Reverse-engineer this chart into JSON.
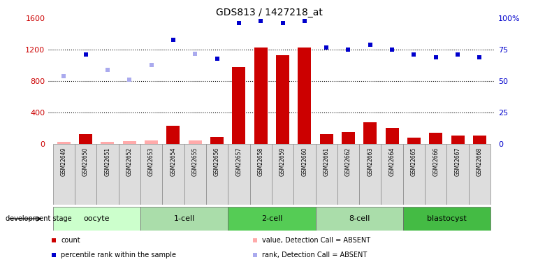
{
  "title": "GDS813 / 1427218_at",
  "samples": [
    "GSM22649",
    "GSM22650",
    "GSM22651",
    "GSM22652",
    "GSM22653",
    "GSM22654",
    "GSM22655",
    "GSM22656",
    "GSM22657",
    "GSM22658",
    "GSM22659",
    "GSM22660",
    "GSM22661",
    "GSM22662",
    "GSM22663",
    "GSM22664",
    "GSM22665",
    "GSM22666",
    "GSM22667",
    "GSM22668"
  ],
  "count_values": [
    25,
    130,
    25,
    35,
    45,
    230,
    45,
    95,
    980,
    1230,
    1130,
    1230,
    125,
    155,
    275,
    205,
    85,
    145,
    105,
    105
  ],
  "count_absent": [
    true,
    false,
    true,
    true,
    true,
    false,
    true,
    false,
    false,
    false,
    false,
    false,
    false,
    false,
    false,
    false,
    false,
    false,
    false,
    false
  ],
  "rank_pct": [
    54,
    71,
    59,
    51,
    63,
    83,
    72,
    68,
    96,
    98,
    96,
    98,
    77,
    75,
    79,
    75,
    71,
    69,
    71,
    69
  ],
  "rank_absent": [
    true,
    false,
    true,
    true,
    true,
    false,
    true,
    false,
    false,
    false,
    false,
    false,
    false,
    false,
    false,
    false,
    false,
    false,
    false,
    false
  ],
  "ylim_left": [
    0,
    1600
  ],
  "ylim_right": [
    0,
    100
  ],
  "yticks_left": [
    0,
    400,
    800,
    1200,
    1600
  ],
  "ytick_labels_left": [
    "0",
    "400",
    "800",
    "1200",
    "1600"
  ],
  "yticks_right": [
    0,
    25,
    50,
    75,
    100
  ],
  "ytick_labels_right": [
    "0",
    "25",
    "50",
    "75",
    "100%"
  ],
  "stage_groups": [
    {
      "label": "oocyte",
      "start": 0,
      "end": 3,
      "color": "#ccffcc"
    },
    {
      "label": "1-cell",
      "start": 4,
      "end": 7,
      "color": "#aaddaa"
    },
    {
      "label": "2-cell",
      "start": 8,
      "end": 11,
      "color": "#55cc55"
    },
    {
      "label": "8-cell",
      "start": 12,
      "end": 15,
      "color": "#aaddaa"
    },
    {
      "label": "blastocyst",
      "start": 16,
      "end": 19,
      "color": "#44bb44"
    }
  ],
  "bar_color_present": "#cc0000",
  "bar_color_absent": "#ffaaaa",
  "rank_color_present": "#0000cc",
  "rank_color_absent": "#aaaaee",
  "axis_color_left": "#cc0000",
  "axis_color_right": "#0000cc",
  "hline_color": "black",
  "hline_style": ":",
  "hline_positions": [
    400,
    800,
    1200
  ]
}
